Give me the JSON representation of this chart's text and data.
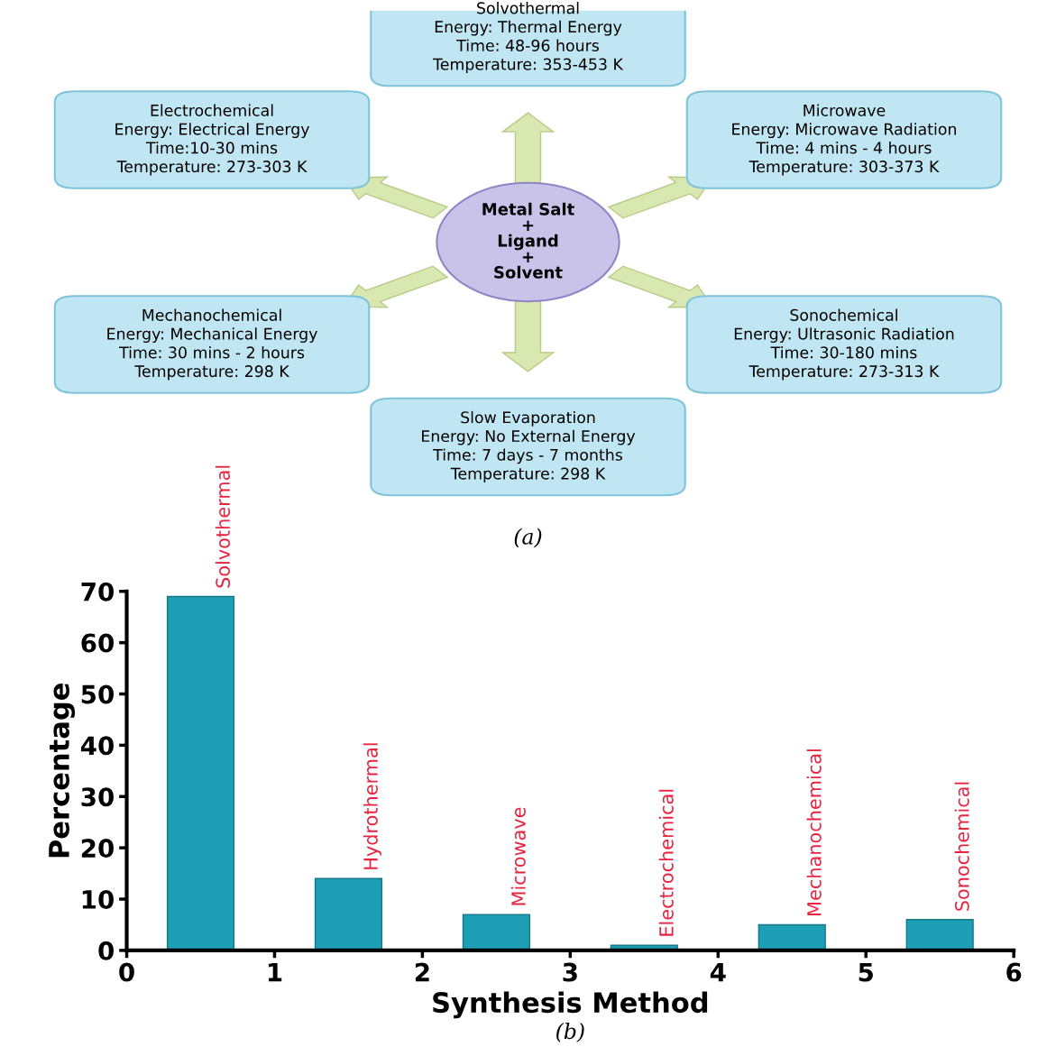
{
  "chart_data": [
    {
      "type": "other",
      "annotations": [
        "Metal Salt\n+\nLigand\n+\nSolvent",
        "Solvothermal\nEnergy: Thermal Energy\nTime: 48-96 hours\nTemperature: 353-453 K",
        "Microwave\nEnergy: Microwave Radiation\nTime: 4 mins - 4 hours\nTemperature: 303-373 K",
        "Sonochemical\nEnergy: Ultrasonic Radiation\nTime: 30-180 mins\nTemperature: 273-313 K",
        "Slow Evaporation\nEnergy: No External Energy\nTime: 7 days - 7 months\nTemperature: 298 K",
        "Mechanochemical\nEnergy: Mechanical Energy\nTime: 30 mins - 2 hours\nTemperature: 298 K",
        "Electrochemical\nEnergy: Electrical Energy\nTime:10-30 mins\nTemperature: 273-303 K",
        "(a)"
      ]
    },
    {
      "type": "bar",
      "xlabel": "Synthesis Method",
      "ylabel": "Percentage",
      "x": [
        0.5,
        1.5,
        2.5,
        3.5,
        4.5,
        5.5
      ],
      "values": [
        69,
        14,
        7,
        1,
        5,
        6
      ],
      "color": "#1e9fb5",
      "xlim": [
        0,
        6
      ],
      "xticks": [
        0,
        1,
        2,
        3,
        4,
        5,
        6
      ],
      "ylim": [
        0,
        70
      ],
      "yticks": [
        0,
        10,
        20,
        30,
        40,
        50,
        60,
        70
      ],
      "grid": false,
      "annotations": [
        {
          "text": "Solvothermal",
          "x": 0.5,
          "y": 69
        },
        {
          "text": "Hydrothermal",
          "x": 1.5,
          "y": 14
        },
        {
          "text": "Microwave",
          "x": 2.5,
          "y": 7
        },
        {
          "text": "Electrochemical",
          "x": 3.5,
          "y": 1
        },
        {
          "text": "Mechanochemical",
          "x": 4.5,
          "y": 5
        },
        {
          "text": "Sonochemical",
          "x": 5.5,
          "y": 6
        },
        "(b)"
      ]
    }
  ]
}
